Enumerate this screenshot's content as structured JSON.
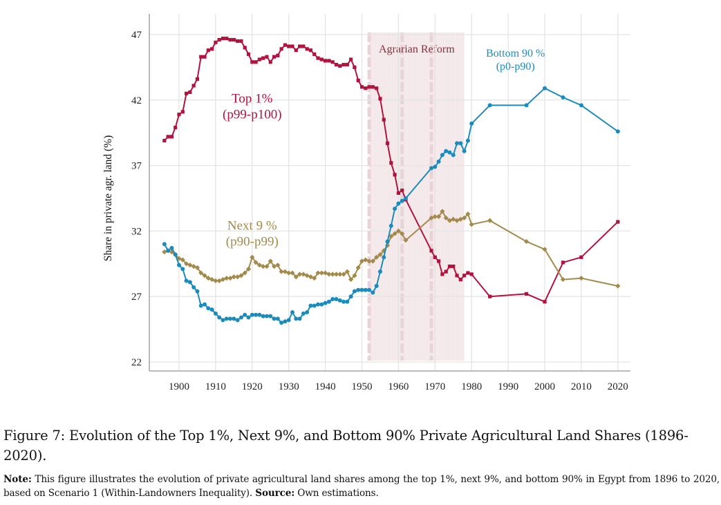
{
  "chart_data": {
    "type": "line",
    "title": "",
    "xlabel": "",
    "ylabel": "Share in private agr. land (%)",
    "xlim": [
      1893,
      2023
    ],
    "ylim": [
      21.3,
      48.5
    ],
    "x_ticks": [
      1900,
      1910,
      1920,
      1930,
      1940,
      1950,
      1960,
      1970,
      1980,
      1990,
      2000,
      2010,
      2020
    ],
    "y_ticks": [
      22,
      27,
      32,
      37,
      42,
      47
    ],
    "grid": true,
    "legend": "none (inline labels)",
    "shaded_regions": [
      {
        "label": "Agrarian Reform",
        "from": 1952,
        "to": 1978,
        "color": "#8c2b3b",
        "dashed_markers": [
          1952,
          1961,
          1969
        ]
      }
    ],
    "series": [
      {
        "name": "Top 1%",
        "label_line1": "Top 1%",
        "label_line2": "(p99-p100)",
        "label_at": [
          1920,
          41.8
        ],
        "color": "#b2123f",
        "marker": "square",
        "x": [
          1896,
          1897,
          1898,
          1899,
          1900,
          1901,
          1902,
          1903,
          1904,
          1905,
          1906,
          1907,
          1908,
          1909,
          1910,
          1911,
          1912,
          1913,
          1914,
          1915,
          1916,
          1917,
          1918,
          1919,
          1920,
          1921,
          1922,
          1923,
          1924,
          1925,
          1926,
          1927,
          1928,
          1929,
          1930,
          1931,
          1932,
          1933,
          1934,
          1935,
          1936,
          1937,
          1938,
          1939,
          1940,
          1941,
          1942,
          1943,
          1944,
          1945,
          1946,
          1947,
          1948,
          1949,
          1950,
          1951,
          1952,
          1953,
          1954,
          1955,
          1956,
          1957,
          1958,
          1959,
          1960,
          1961,
          1962,
          1969,
          1970,
          1971,
          1972,
          1973,
          1974,
          1975,
          1976,
          1977,
          1978,
          1979,
          1980,
          1985,
          1995,
          2000,
          2005,
          2010,
          2020
        ],
        "values": [
          38.9,
          39.2,
          39.2,
          39.9,
          40.9,
          41.1,
          42.5,
          42.6,
          43.1,
          43.6,
          45.3,
          45.3,
          45.8,
          45.9,
          46.4,
          46.6,
          46.7,
          46.7,
          46.6,
          46.6,
          46.5,
          46.5,
          46.0,
          45.5,
          44.9,
          44.9,
          45.1,
          45.2,
          45.3,
          44.9,
          45.3,
          45.4,
          45.9,
          46.2,
          46.1,
          46.1,
          45.8,
          46.1,
          46.1,
          45.9,
          45.8,
          45.5,
          45.2,
          45.1,
          45.0,
          45.0,
          44.9,
          44.7,
          44.6,
          44.7,
          44.7,
          45.1,
          44.5,
          43.5,
          43.0,
          42.9,
          43.0,
          43.0,
          42.9,
          42.1,
          40.5,
          38.7,
          37.2,
          36.3,
          34.9,
          35.1,
          34.4,
          30.5,
          30.0,
          29.7,
          28.7,
          28.9,
          29.3,
          29.3,
          28.6,
          28.3,
          28.6,
          28.8,
          28.7,
          27.0,
          27.2,
          26.6,
          29.6,
          30.0,
          32.7
        ]
      },
      {
        "name": "Next 9 %",
        "label_line1": "Next 9 %",
        "label_line2": "(p90-p99)",
        "label_at": [
          1920,
          32.1
        ],
        "color": "#a38a4a",
        "marker": "diamond",
        "x": [
          1896,
          1897,
          1898,
          1899,
          1900,
          1901,
          1902,
          1903,
          1904,
          1905,
          1906,
          1907,
          1908,
          1909,
          1910,
          1911,
          1912,
          1913,
          1914,
          1915,
          1916,
          1917,
          1918,
          1919,
          1920,
          1921,
          1922,
          1923,
          1924,
          1925,
          1926,
          1927,
          1928,
          1929,
          1930,
          1931,
          1932,
          1933,
          1934,
          1935,
          1936,
          1937,
          1938,
          1939,
          1940,
          1941,
          1942,
          1943,
          1944,
          1945,
          1946,
          1947,
          1948,
          1949,
          1950,
          1951,
          1952,
          1953,
          1954,
          1955,
          1956,
          1957,
          1958,
          1959,
          1960,
          1961,
          1962,
          1969,
          1970,
          1971,
          1972,
          1973,
          1974,
          1975,
          1976,
          1977,
          1978,
          1979,
          1980,
          1985,
          1995,
          2000,
          2005,
          2010,
          2020
        ],
        "values": [
          30.4,
          30.5,
          30.4,
          30.2,
          29.9,
          29.8,
          29.5,
          29.4,
          29.3,
          29.2,
          28.8,
          28.6,
          28.4,
          28.3,
          28.2,
          28.2,
          28.3,
          28.4,
          28.4,
          28.5,
          28.5,
          28.6,
          28.8,
          29.1,
          30.0,
          29.6,
          29.4,
          29.3,
          29.3,
          29.7,
          29.3,
          29.4,
          28.9,
          28.9,
          28.8,
          28.8,
          28.5,
          28.7,
          28.7,
          28.6,
          28.5,
          28.4,
          28.8,
          28.8,
          28.8,
          28.7,
          28.7,
          28.7,
          28.7,
          28.7,
          28.9,
          28.3,
          28.6,
          29.2,
          29.7,
          29.8,
          29.7,
          29.7,
          30.0,
          30.2,
          30.5,
          30.9,
          31.6,
          31.8,
          32.0,
          31.8,
          31.3,
          33.0,
          33.1,
          33.1,
          33.5,
          33.0,
          32.8,
          32.9,
          32.8,
          32.9,
          33.0,
          33.3,
          32.5,
          32.8,
          31.2,
          30.6,
          28.3,
          28.4,
          27.8
        ]
      },
      {
        "name": "Bottom 90 %",
        "label_line1": "Bottom 90 %",
        "label_line2": "(p0-p90)",
        "label_at": [
          1992,
          45.3
        ],
        "color": "#1a8bbd",
        "marker": "circle",
        "x": [
          1896,
          1897,
          1898,
          1899,
          1900,
          1901,
          1902,
          1903,
          1904,
          1905,
          1906,
          1907,
          1908,
          1909,
          1910,
          1911,
          1912,
          1913,
          1914,
          1915,
          1916,
          1917,
          1918,
          1919,
          1920,
          1921,
          1922,
          1923,
          1924,
          1925,
          1926,
          1927,
          1928,
          1929,
          1930,
          1931,
          1932,
          1933,
          1934,
          1935,
          1936,
          1937,
          1938,
          1939,
          1940,
          1941,
          1942,
          1943,
          1944,
          1945,
          1946,
          1947,
          1948,
          1949,
          1950,
          1951,
          1952,
          1953,
          1954,
          1955,
          1956,
          1957,
          1958,
          1959,
          1960,
          1961,
          1962,
          1969,
          1970,
          1971,
          1972,
          1973,
          1974,
          1975,
          1976,
          1977,
          1978,
          1979,
          1980,
          1985,
          1995,
          2000,
          2005,
          2010,
          2020
        ],
        "values": [
          31.0,
          30.5,
          30.7,
          30.2,
          29.4,
          29.1,
          28.2,
          28.1,
          27.7,
          27.4,
          26.3,
          26.4,
          26.1,
          26.0,
          25.7,
          25.4,
          25.2,
          25.3,
          25.3,
          25.3,
          25.2,
          25.4,
          25.6,
          25.4,
          25.6,
          25.6,
          25.6,
          25.5,
          25.5,
          25.5,
          25.3,
          25.3,
          25.0,
          25.1,
          25.2,
          25.8,
          25.3,
          25.3,
          25.7,
          25.8,
          26.3,
          26.3,
          26.4,
          26.4,
          26.5,
          26.6,
          26.8,
          26.8,
          26.7,
          26.6,
          26.6,
          27.0,
          27.4,
          27.5,
          27.5,
          27.5,
          27.5,
          27.3,
          27.8,
          28.9,
          30.0,
          31.2,
          32.4,
          33.7,
          34.1,
          34.3,
          34.5,
          36.8,
          36.9,
          37.3,
          37.8,
          38.1,
          38.0,
          37.8,
          38.7,
          38.7,
          38.1,
          38.9,
          40.2,
          41.6,
          41.6,
          42.9,
          42.2,
          41.6,
          39.6
        ]
      }
    ]
  },
  "caption": {
    "text": "Figure 7: Evolution of the Top 1%, Next 9%, and Bottom 90% Private Agricultural Land Shares (1896-2020)."
  },
  "note": {
    "note_label": "Note:",
    "note_text": " This figure illustrates the evolution of private agricultural land shares among the top 1%, next 9%, and bottom 90% in Egypt from 1896 to 2020, based on Scenario 1 (Within-Landowners Inequality). ",
    "source_label": "Source:",
    "source_text": " Own estimations."
  }
}
